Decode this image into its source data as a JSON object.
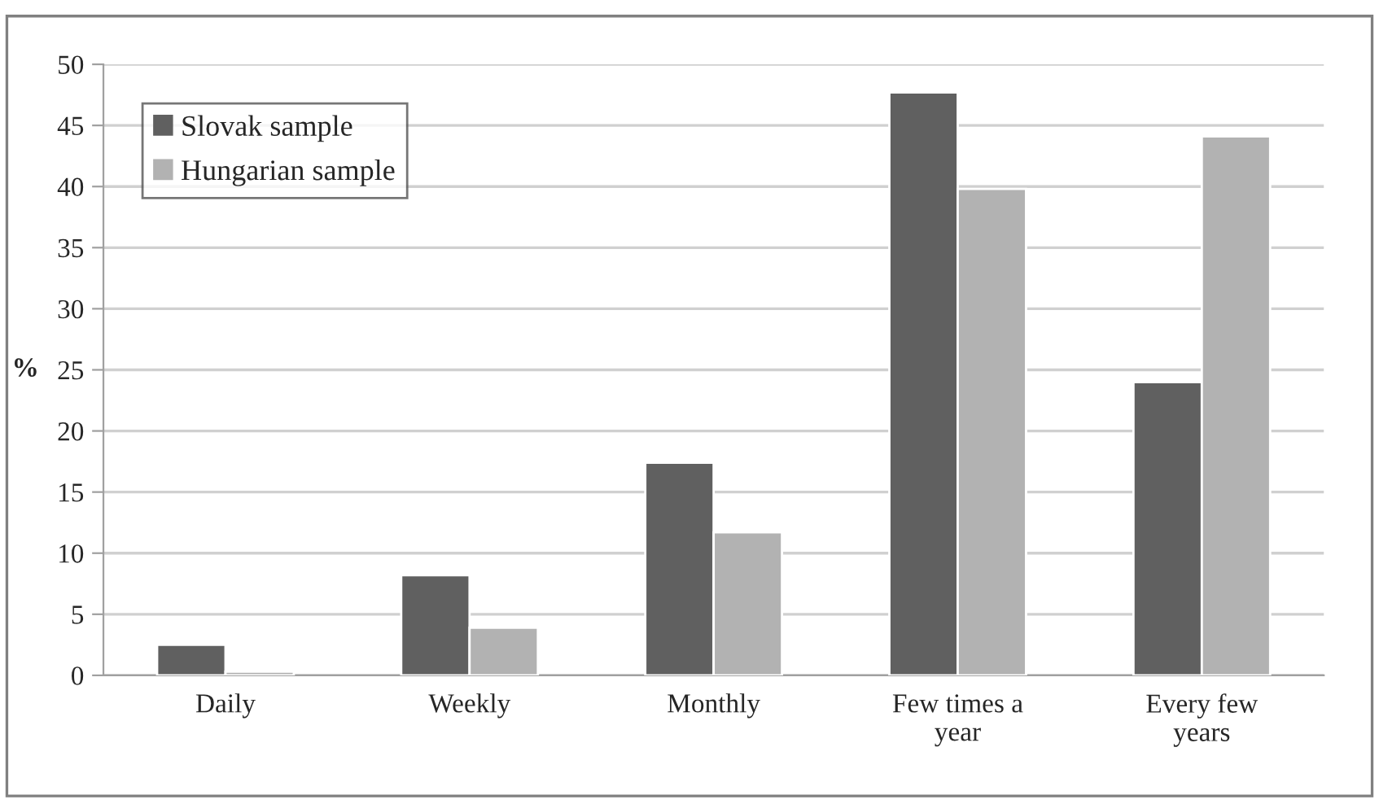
{
  "chart_data": {
    "type": "bar",
    "ylabel": "%",
    "categories": [
      "Daily",
      "Weekly",
      "Monthly",
      "Few times a\nyear",
      "Every few\nyears"
    ],
    "series": [
      {
        "name": "Slovak sample",
        "color": "#606060",
        "values": [
          2.5,
          8.2,
          17.4,
          47.7,
          24.0
        ]
      },
      {
        "name": "Hungarian sample",
        "color": "#b2b2b2",
        "values": [
          0.3,
          3.9,
          11.7,
          39.8,
          44.1
        ]
      }
    ],
    "ylim": [
      0,
      50
    ],
    "yticks": [
      0,
      5,
      10,
      15,
      20,
      25,
      30,
      35,
      40,
      45,
      50
    ],
    "grid": "y",
    "legend": "top left"
  }
}
